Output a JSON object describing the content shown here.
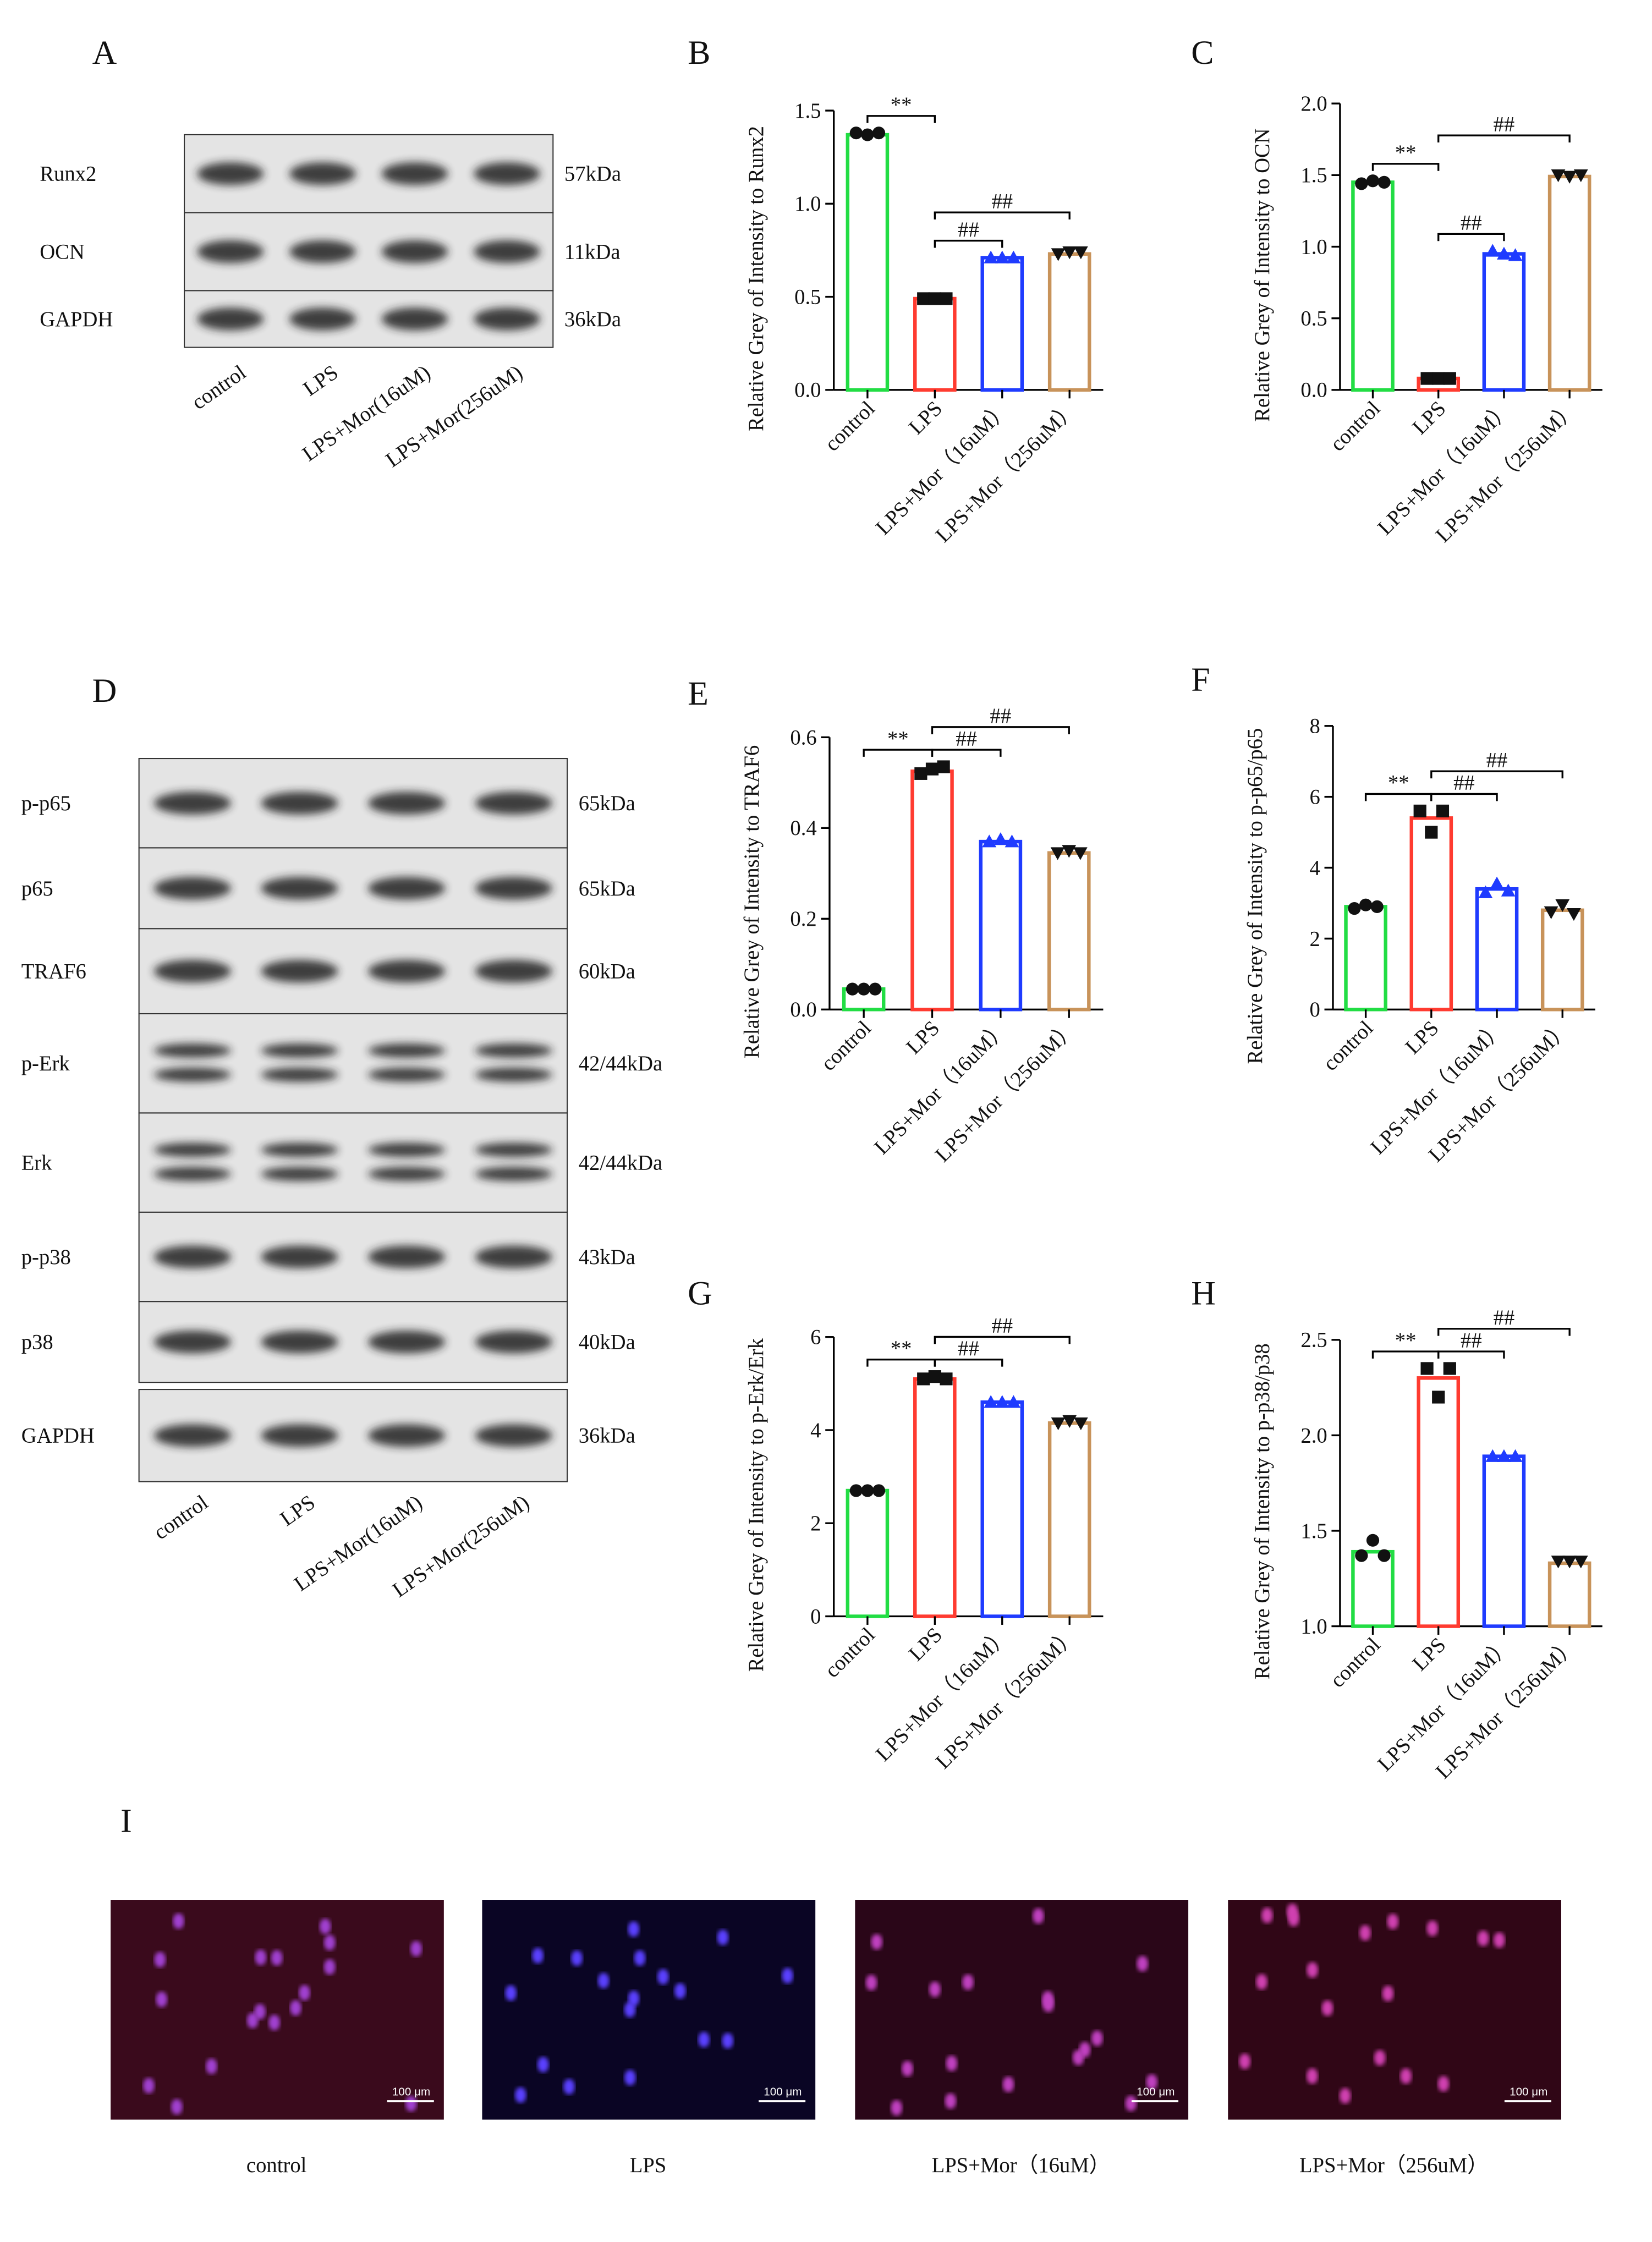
{
  "panels": [
    "A",
    "D",
    "I"
  ],
  "blot_A": {
    "rows": [
      {
        "name": "Runx2",
        "size": "57kDa"
      },
      {
        "name": "OCN",
        "size": "11kDa"
      },
      {
        "name": "GAPDH",
        "size": "36kDa"
      }
    ],
    "lanes": [
      "control",
      "LPS",
      "LPS+Mor(16uM)",
      "LPS+Mor(256uM)"
    ]
  },
  "blot_D": {
    "rows": [
      {
        "name": "p-p65",
        "size": "65kDa"
      },
      {
        "name": "p65",
        "size": "65kDa"
      },
      {
        "name": "TRAF6",
        "size": "60kDa"
      },
      {
        "name": "p-Erk",
        "size": "42/44kDa"
      },
      {
        "name": "Erk",
        "size": "42/44kDa"
      },
      {
        "name": "p-p38",
        "size": "43kDa"
      },
      {
        "name": "p38",
        "size": "40kDa"
      },
      {
        "name": "GAPDH",
        "size": "36kDa"
      }
    ],
    "lanes": [
      "control",
      "LPS",
      "LPS+Mor(16uM)",
      "LPS+Mor(256uM)"
    ]
  },
  "images": {
    "captions": [
      "control",
      "LPS",
      "LPS+Mor（16uM）",
      "LPS+Mor（256uM）"
    ],
    "scale_bar": "100 μm"
  },
  "chart_data": [
    {
      "type": "bar",
      "label": "B",
      "ylabel": "Relative Grey of Intensity to Runx2",
      "categories": [
        "control",
        "LPS",
        "LPS+Mor（16uM）",
        "LPS+Mor（256uM）"
      ],
      "colors": [
        "#22dd44",
        "#ff3b30",
        "#1f3bff",
        "#c8935a"
      ],
      "values": [
        1.37,
        0.49,
        0.71,
        0.73
      ],
      "points": [
        [
          1.38,
          1.37,
          1.38
        ],
        [
          0.49,
          0.49,
          0.49
        ],
        [
          0.71,
          0.71,
          0.71
        ],
        [
          0.73,
          0.74,
          0.74
        ]
      ],
      "ylim": [
        0,
        1.5
      ],
      "yticks": [
        {
          "value": 0,
          "label": "0.0"
        },
        {
          "value": 0.5,
          "label": "0.5"
        },
        {
          "value": 1,
          "label": "1.0"
        },
        {
          "value": 1.5,
          "label": "1.5"
        }
      ],
      "comparisons": [
        {
          "label": "**",
          "from": 0,
          "to": 1
        },
        {
          "label": "##",
          "from": 1,
          "to": 2
        },
        {
          "label": "##",
          "from": 1,
          "to": 3
        }
      ]
    },
    {
      "type": "bar",
      "label": "C",
      "ylabel": "Relative Grey of Intensity to OCN",
      "categories": [
        "control",
        "LPS",
        "LPS+Mor（16uM）",
        "LPS+Mor（256uM）"
      ],
      "colors": [
        "#22dd44",
        "#ff3b30",
        "#1f3bff",
        "#c8935a"
      ],
      "values": [
        1.45,
        0.08,
        0.95,
        1.49
      ],
      "points": [
        [
          1.44,
          1.46,
          1.45
        ],
        [
          0.08,
          0.08,
          0.08
        ],
        [
          0.97,
          0.95,
          0.94
        ],
        [
          1.5,
          1.49,
          1.5
        ]
      ],
      "ylim": [
        0,
        2
      ],
      "yticks": [
        {
          "value": 0,
          "label": "0.0"
        },
        {
          "value": 0.5,
          "label": "0.5"
        },
        {
          "value": 1,
          "label": "1.0"
        },
        {
          "value": 1.5,
          "label": "1.5"
        },
        {
          "value": 2,
          "label": "2.0"
        }
      ],
      "comparisons": [
        {
          "label": "**",
          "from": 0,
          "to": 1
        },
        {
          "label": "##",
          "from": 1,
          "to": 2
        },
        {
          "label": "##",
          "from": 1,
          "to": 3
        }
      ]
    },
    {
      "type": "bar",
      "label": "E",
      "ylabel": "Relative Grey of Intensity to TRAF6",
      "categories": [
        "control",
        "LPS",
        "LPS+Mor（16uM）",
        "LPS+Mor（256uM）"
      ],
      "colors": [
        "#22dd44",
        "#ff3b30",
        "#1f3bff",
        "#c8935a"
      ],
      "values": [
        0.045,
        0.525,
        0.37,
        0.345
      ],
      "points": [
        [
          0.045,
          0.045,
          0.045
        ],
        [
          0.52,
          0.53,
          0.535
        ],
        [
          0.37,
          0.375,
          0.37
        ],
        [
          0.345,
          0.35,
          0.345
        ]
      ],
      "ylim": [
        0,
        0.6
      ],
      "yticks": [
        {
          "value": 0,
          "label": "0.0"
        },
        {
          "value": 0.2,
          "label": "0.2"
        },
        {
          "value": 0.4,
          "label": "0.4"
        },
        {
          "value": 0.6,
          "label": "0.6"
        }
      ],
      "comparisons": [
        {
          "label": "**",
          "from": 0,
          "to": 1
        },
        {
          "label": "##",
          "from": 1,
          "to": 2
        },
        {
          "label": "##",
          "from": 1,
          "to": 3
        }
      ]
    },
    {
      "type": "bar",
      "label": "F",
      "ylabel": "Relative Grey of Intensity to p-p65/p65",
      "categories": [
        "control",
        "LPS",
        "LPS+Mor（16uM）",
        "LPS+Mor（256uM）"
      ],
      "colors": [
        "#22dd44",
        "#ff3b30",
        "#1f3bff",
        "#c8935a"
      ],
      "values": [
        2.9,
        5.4,
        3.4,
        2.8
      ],
      "points": [
        [
          2.85,
          2.95,
          2.9
        ],
        [
          5.6,
          5.0,
          5.6
        ],
        [
          3.3,
          3.55,
          3.35
        ],
        [
          2.75,
          2.95,
          2.7
        ]
      ],
      "ylim": [
        0,
        8
      ],
      "yticks": [
        0,
        2,
        4,
        6,
        8
      ],
      "comparisons": [
        {
          "label": "**",
          "from": 0,
          "to": 1
        },
        {
          "label": "##",
          "from": 1,
          "to": 2
        },
        {
          "label": "##",
          "from": 1,
          "to": 3
        }
      ]
    },
    {
      "type": "bar",
      "label": "G",
      "ylabel": "Relative Grey of Intensity to p-Erk/Erk",
      "categories": [
        "control",
        "LPS",
        "LPS+Mor（16uM）",
        "LPS+Mor（256uM）"
      ],
      "colors": [
        "#22dd44",
        "#ff3b30",
        "#1f3bff",
        "#c8935a"
      ],
      "values": [
        2.7,
        5.1,
        4.6,
        4.15
      ],
      "points": [
        [
          2.7,
          2.7,
          2.7
        ],
        [
          5.1,
          5.15,
          5.1
        ],
        [
          4.6,
          4.6,
          4.6
        ],
        [
          4.15,
          4.2,
          4.15
        ]
      ],
      "ylim": [
        0,
        6
      ],
      "yticks": [
        0,
        2,
        4,
        6
      ],
      "comparisons": [
        {
          "label": "**",
          "from": 0,
          "to": 1
        },
        {
          "label": "##",
          "from": 1,
          "to": 2
        },
        {
          "label": "##",
          "from": 1,
          "to": 3
        }
      ]
    },
    {
      "type": "bar",
      "label": "H",
      "ylabel": "Relative Grey of Intensity to p-p38/p38",
      "categories": [
        "control",
        "LPS",
        "LPS+Mor（16uM）",
        "LPS+Mor（256uM）"
      ],
      "colors": [
        "#22dd44",
        "#ff3b30",
        "#1f3bff",
        "#c8935a"
      ],
      "values": [
        1.39,
        2.3,
        1.89,
        1.33
      ],
      "points": [
        [
          1.37,
          1.45,
          1.37
        ],
        [
          2.35,
          2.2,
          2.35
        ],
        [
          1.89,
          1.89,
          1.89
        ],
        [
          1.34,
          1.34,
          1.34
        ]
      ],
      "ylim": [
        1,
        2.5
      ],
      "yticks": [
        {
          "value": 1,
          "label": "1.0"
        },
        {
          "value": 1.5,
          "label": "1.5"
        },
        {
          "value": 2,
          "label": "2.0"
        },
        {
          "value": 2.5,
          "label": "2.5"
        }
      ],
      "comparisons": [
        {
          "label": "**",
          "from": 0,
          "to": 1
        },
        {
          "label": "##",
          "from": 1,
          "to": 2
        },
        {
          "label": "##",
          "from": 1,
          "to": 3
        }
      ]
    }
  ]
}
